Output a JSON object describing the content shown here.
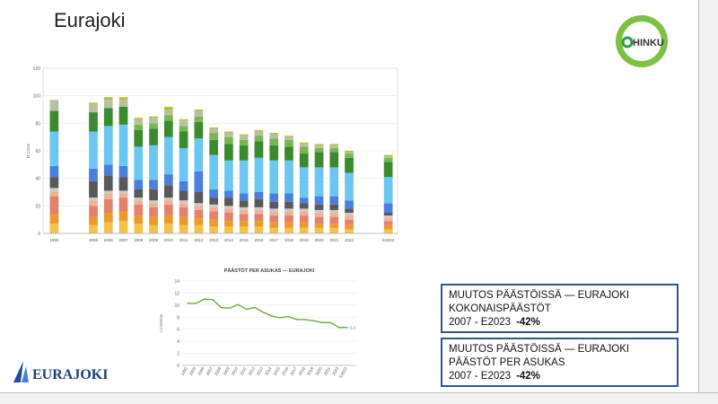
{
  "page": {
    "title": "Eurajoki"
  },
  "logos": {
    "hinku_text": "HINKU",
    "eurajoki_text": "EURAJOKI"
  },
  "infoboxes": [
    {
      "line1": "MUUTOS PÄÄSTÖISSÄ — EURAJOKI",
      "line2": "KOKONAISPÄÄSTÖT",
      "period": "2007 - E2023",
      "change": "-42%"
    },
    {
      "line1": "MUUTOS PÄÄSTÖISSÄ — EURAJOKI",
      "line2": "PÄÄSTÖT PER ASUKAS",
      "period": "2007 - E2023",
      "change": "-42%"
    }
  ],
  "colors": {
    "box_border": "#2f5597",
    "line_color": "#70a840"
  },
  "chart_data": [
    {
      "type": "bar",
      "stacked": true,
      "ylabel": "kt CO2e",
      "ylim": [
        0,
        120
      ],
      "yticks": [
        0,
        20,
        40,
        60,
        80,
        100,
        120
      ],
      "categories": [
        "1990",
        "2005",
        "2006",
        "2007",
        "2008",
        "2009",
        "2010",
        "2011",
        "2012",
        "2013",
        "2014",
        "2015",
        "2016",
        "2017",
        "2018",
        "2019",
        "2020",
        "2021",
        "2022",
        "E2023"
      ],
      "gaps_after": [
        0,
        18
      ],
      "series": [
        {
          "color": "#f3c24e",
          "values": [
            7,
            6,
            8,
            9,
            7,
            6,
            7,
            6,
            6,
            5,
            5,
            5,
            5,
            4,
            4,
            4,
            4,
            4,
            3,
            3
          ]
        },
        {
          "color": "#eb9b28",
          "values": [
            7,
            6,
            7,
            7,
            6,
            6,
            6,
            6,
            5,
            5,
            4,
            4,
            4,
            4,
            4,
            4,
            3,
            3,
            3,
            3
          ]
        },
        {
          "color": "#e5816a",
          "values": [
            13,
            8,
            10,
            10,
            8,
            7,
            8,
            7,
            6,
            6,
            6,
            5,
            5,
            5,
            5,
            5,
            5,
            5,
            4,
            3
          ]
        },
        {
          "color": "#f0b09a",
          "values": [
            3,
            4,
            4,
            3,
            3,
            3,
            3,
            3,
            3,
            3,
            3,
            3,
            3,
            3,
            3,
            3,
            3,
            3,
            3,
            2
          ]
        },
        {
          "color": "#cccccc",
          "values": [
            3,
            2,
            2,
            2,
            2,
            2,
            2,
            2,
            2,
            2,
            2,
            2,
            2,
            2,
            2,
            2,
            2,
            2,
            2,
            2
          ]
        },
        {
          "color": "#595959",
          "values": [
            8,
            12,
            11,
            10,
            6,
            8,
            9,
            7,
            8,
            5,
            6,
            5,
            6,
            5,
            5,
            4,
            4,
            4,
            3,
            2
          ]
        },
        {
          "color": "#4a7fdc",
          "values": [
            8,
            9,
            8,
            8,
            7,
            7,
            8,
            7,
            15,
            6,
            5,
            5,
            5,
            6,
            6,
            4,
            6,
            6,
            6,
            7
          ]
        },
        {
          "color": "#6bc7f2",
          "values": [
            25,
            27,
            28,
            30,
            24,
            25,
            27,
            24,
            24,
            25,
            22,
            24,
            25,
            24,
            24,
            22,
            21,
            21,
            20,
            19
          ]
        },
        {
          "color": "#3a8a2e",
          "values": [
            15,
            14,
            13,
            13,
            12,
            12,
            12,
            12,
            12,
            11,
            12,
            11,
            12,
            11,
            10,
            10,
            11,
            11,
            11,
            11
          ]
        },
        {
          "color": "#7ab64f",
          "values": [
            0,
            0,
            0,
            0,
            4,
            4,
            4,
            4,
            4,
            5,
            5,
            4,
            4,
            5,
            5,
            5,
            3,
            3,
            3,
            3
          ]
        },
        {
          "color": "#b9bfa5",
          "values": [
            8,
            6,
            6,
            5,
            4,
            4,
            4,
            4,
            4,
            3,
            3,
            3,
            3,
            3,
            2,
            2,
            2,
            2,
            1,
            1
          ]
        },
        {
          "color": "#b4c42e",
          "values": [
            0,
            1,
            2,
            2,
            1,
            1,
            2,
            1,
            1,
            1,
            1,
            1,
            1,
            1,
            1,
            1,
            1,
            1,
            1,
            1
          ]
        }
      ]
    },
    {
      "type": "line",
      "title": "PÄÄSTÖT PER ASUKAS — EURAJOKI",
      "ylabel": "t CO2e/as",
      "ylim": [
        0,
        14
      ],
      "yticks": [
        0,
        2,
        4,
        6,
        8,
        10,
        12,
        14
      ],
      "categories": [
        "1990",
        "2005",
        "2006",
        "2007",
        "2008",
        "2009",
        "2010",
        "2011",
        "2012",
        "2013",
        "2014",
        "2015",
        "2016",
        "2017",
        "2018",
        "2019",
        "2020",
        "2021",
        "2022",
        "E2023"
      ],
      "values": [
        10.3,
        10.3,
        11.0,
        10.9,
        9.6,
        9.5,
        10.1,
        9.3,
        9.6,
        8.8,
        8.2,
        7.9,
        8.1,
        7.6,
        7.6,
        7.4,
        7.1,
        7.1,
        6.3,
        6.3
      ],
      "end_label": "6.3"
    }
  ]
}
